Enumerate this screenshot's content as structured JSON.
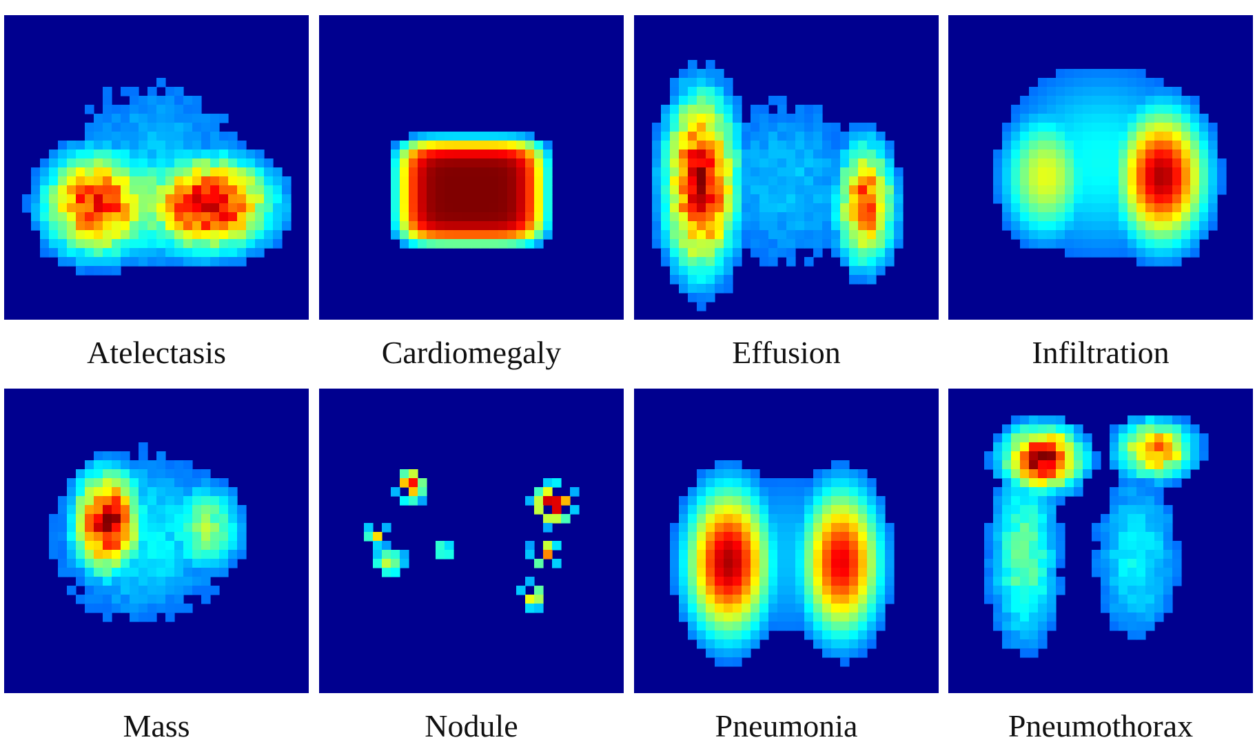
{
  "colormap": "jet",
  "background_color": "#00008f",
  "chart_data": [
    {
      "type": "heatmap",
      "title": "Atelectasis",
      "blobs": [
        {
          "cx": 0.31,
          "cy": 0.62,
          "rx": 0.22,
          "ry": 0.21,
          "peak": 0.85,
          "shape": "blocky"
        },
        {
          "cx": 0.67,
          "cy": 0.62,
          "rx": 0.26,
          "ry": 0.19,
          "peak": 0.92,
          "shape": "blocky"
        },
        {
          "cx": 0.5,
          "cy": 0.62,
          "rx": 0.32,
          "ry": 0.24,
          "peak": 0.45,
          "shape": "blocky"
        },
        {
          "cx": 0.5,
          "cy": 0.5,
          "rx": 0.48,
          "ry": 0.48,
          "peak": 0.22,
          "shape": "blocky"
        }
      ]
    },
    {
      "type": "heatmap",
      "title": "Cardiomegaly",
      "blobs": [
        {
          "cx": 0.5,
          "cy": 0.58,
          "rx": 0.24,
          "ry": 0.17,
          "peak": 1.0,
          "shape": "box"
        }
      ]
    },
    {
      "type": "heatmap",
      "title": "Effusion",
      "blobs": [
        {
          "cx": 0.22,
          "cy": 0.55,
          "rx": 0.15,
          "ry": 0.36,
          "peak": 0.93,
          "shape": "blocky"
        },
        {
          "cx": 0.76,
          "cy": 0.62,
          "rx": 0.12,
          "ry": 0.25,
          "peak": 0.78,
          "shape": "blocky"
        },
        {
          "cx": 0.5,
          "cy": 0.55,
          "rx": 0.42,
          "ry": 0.46,
          "peak": 0.22,
          "shape": "blocky"
        }
      ]
    },
    {
      "type": "heatmap",
      "title": "Infiltration",
      "blobs": [
        {
          "cx": 0.7,
          "cy": 0.53,
          "rx": 0.18,
          "ry": 0.27,
          "peak": 0.95,
          "shape": "smooth"
        },
        {
          "cx": 0.32,
          "cy": 0.53,
          "rx": 0.18,
          "ry": 0.26,
          "peak": 0.55,
          "shape": "smooth"
        },
        {
          "cx": 0.5,
          "cy": 0.48,
          "rx": 0.46,
          "ry": 0.44,
          "peak": 0.3,
          "shape": "smooth"
        }
      ]
    },
    {
      "type": "heatmap",
      "title": "Mass",
      "blobs": [
        {
          "cx": 0.34,
          "cy": 0.44,
          "rx": 0.14,
          "ry": 0.21,
          "peak": 0.93,
          "shape": "blocky"
        },
        {
          "cx": 0.66,
          "cy": 0.46,
          "rx": 0.16,
          "ry": 0.19,
          "peak": 0.45,
          "shape": "blocky"
        },
        {
          "cx": 0.45,
          "cy": 0.48,
          "rx": 0.42,
          "ry": 0.4,
          "peak": 0.28,
          "shape": "blocky"
        }
      ]
    },
    {
      "type": "heatmap",
      "title": "Nodule",
      "blobs": [
        {
          "cx": 0.3,
          "cy": 0.32,
          "rx": 0.06,
          "ry": 0.07,
          "peak": 0.8,
          "shape": "sparse"
        },
        {
          "cx": 0.19,
          "cy": 0.48,
          "rx": 0.05,
          "ry": 0.05,
          "peak": 0.55,
          "shape": "sparse"
        },
        {
          "cx": 0.23,
          "cy": 0.57,
          "rx": 0.07,
          "ry": 0.07,
          "peak": 0.5,
          "shape": "sparse"
        },
        {
          "cx": 0.41,
          "cy": 0.53,
          "rx": 0.05,
          "ry": 0.05,
          "peak": 0.4,
          "shape": "sparse"
        },
        {
          "cx": 0.77,
          "cy": 0.38,
          "rx": 0.08,
          "ry": 0.08,
          "peak": 0.92,
          "shape": "sparse"
        },
        {
          "cx": 0.74,
          "cy": 0.54,
          "rx": 0.06,
          "ry": 0.06,
          "peak": 0.7,
          "shape": "sparse"
        },
        {
          "cx": 0.7,
          "cy": 0.68,
          "rx": 0.06,
          "ry": 0.06,
          "peak": 0.55,
          "shape": "sparse"
        }
      ]
    },
    {
      "type": "heatmap",
      "title": "Pneumonia",
      "blobs": [
        {
          "cx": 0.31,
          "cy": 0.57,
          "rx": 0.17,
          "ry": 0.3,
          "peak": 0.95,
          "shape": "smooth"
        },
        {
          "cx": 0.68,
          "cy": 0.57,
          "rx": 0.16,
          "ry": 0.3,
          "peak": 0.88,
          "shape": "smooth"
        },
        {
          "cx": 0.5,
          "cy": 0.55,
          "rx": 0.45,
          "ry": 0.44,
          "peak": 0.22,
          "shape": "smooth"
        }
      ]
    },
    {
      "type": "heatmap",
      "title": "Pneumothorax",
      "blobs": [
        {
          "cx": 0.31,
          "cy": 0.23,
          "rx": 0.16,
          "ry": 0.13,
          "peak": 0.95,
          "shape": "blocky"
        },
        {
          "cx": 0.68,
          "cy": 0.2,
          "rx": 0.16,
          "ry": 0.12,
          "peak": 0.72,
          "shape": "blocky"
        },
        {
          "cx": 0.25,
          "cy": 0.55,
          "rx": 0.15,
          "ry": 0.4,
          "peak": 0.4,
          "shape": "blocky"
        },
        {
          "cx": 0.62,
          "cy": 0.55,
          "rx": 0.2,
          "ry": 0.4,
          "peak": 0.28,
          "shape": "blocky"
        }
      ]
    }
  ]
}
